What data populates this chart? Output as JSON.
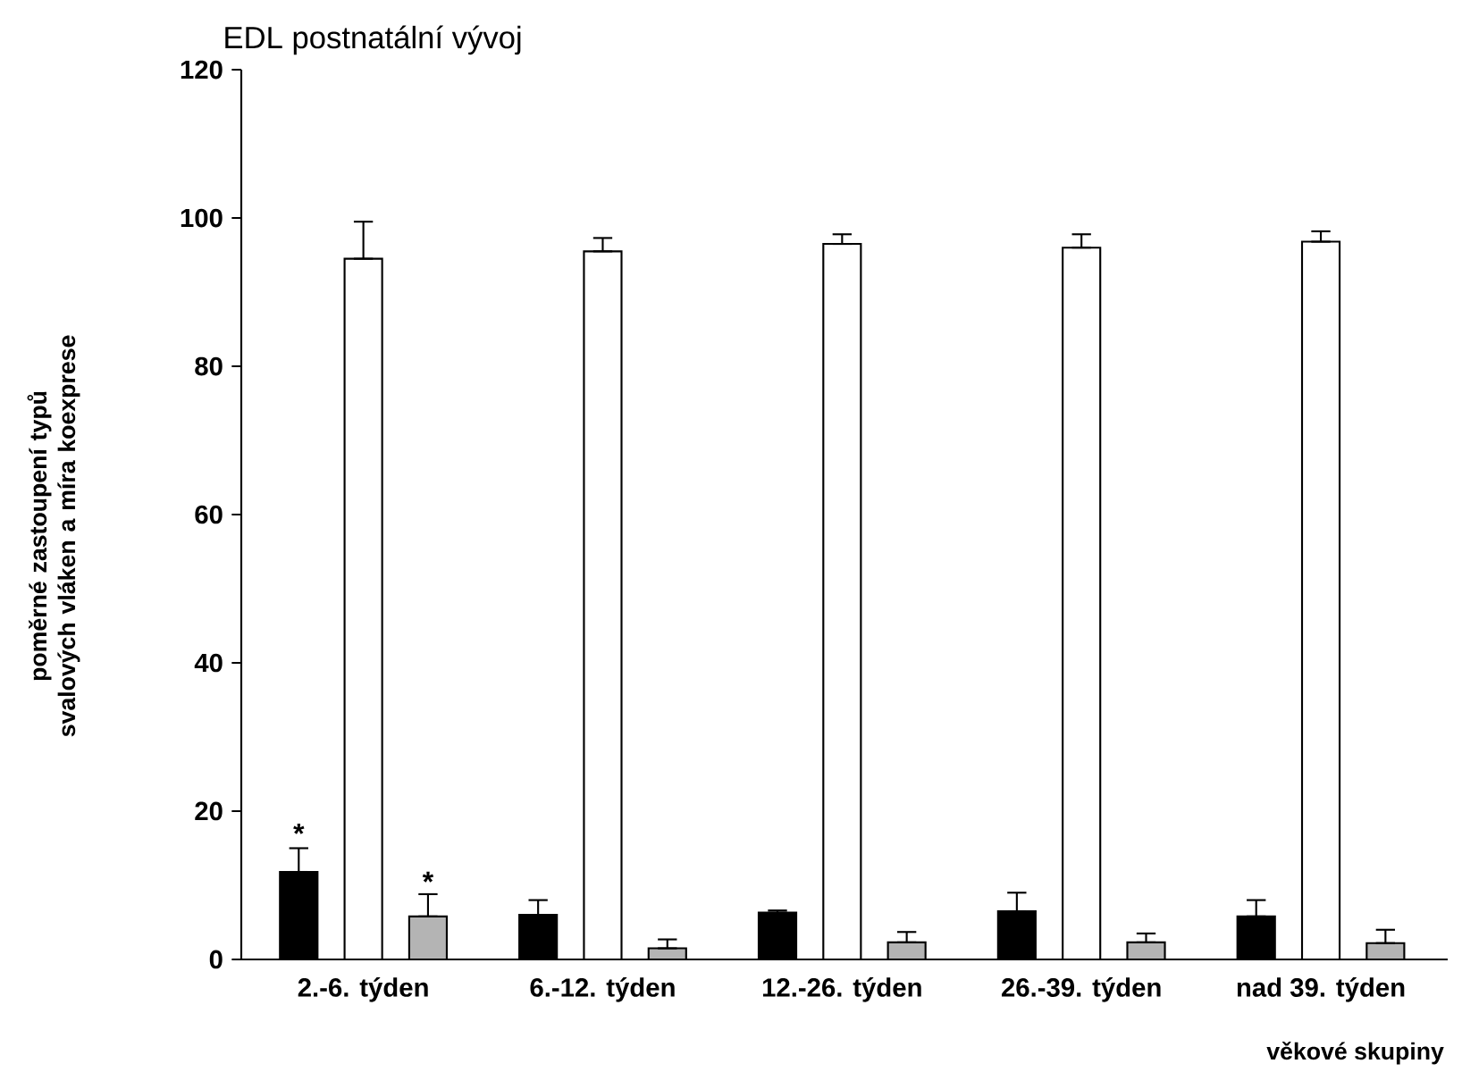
{
  "chart_data": {
    "type": "bar",
    "title": "EDL postnatální vývoj",
    "xlabel": "věkové skupiny",
    "ylabel": "poměrné zastoupení typů svalových vláken a míra koexprese",
    "categories": [
      "2.-6. týden",
      "6.-12. týden",
      "12.-26. týden",
      "26.-39. týden",
      "nad 39. týden"
    ],
    "series": [
      {
        "color": "#000000",
        "values": [
          11.8,
          6,
          6.3,
          6.5,
          5.8
        ],
        "errors": [
          [
            11.8,
            15
          ],
          [
            6,
            8
          ],
          [
            6.3,
            6.6
          ],
          [
            6.5,
            9
          ],
          [
            5.8,
            8
          ]
        ]
      },
      {
        "color": "#ffffff",
        "values": [
          94.5,
          95.5,
          96.5,
          96,
          96.8
        ],
        "errors": [
          [
            94.5,
            99.5
          ],
          [
            95.5,
            97.3
          ],
          [
            96.5,
            97.8
          ],
          [
            96,
            97.8
          ],
          [
            96.8,
            98.2
          ]
        ]
      },
      {
        "color": "#b4b4b4",
        "values": [
          5.8,
          1.5,
          2.3,
          2.3,
          2.2
        ],
        "errors": [
          [
            5.8,
            8.8
          ],
          [
            1.5,
            2.7
          ],
          [
            2.3,
            3.7
          ],
          [
            2.3,
            3.5
          ],
          [
            2.2,
            4
          ]
        ]
      }
    ],
    "annotations": [
      "*",
      "*"
    ],
    "ylim": [
      0,
      120
    ],
    "yticks": [
      0,
      20,
      40,
      60,
      80,
      100,
      120
    ],
    "grid": false
  }
}
